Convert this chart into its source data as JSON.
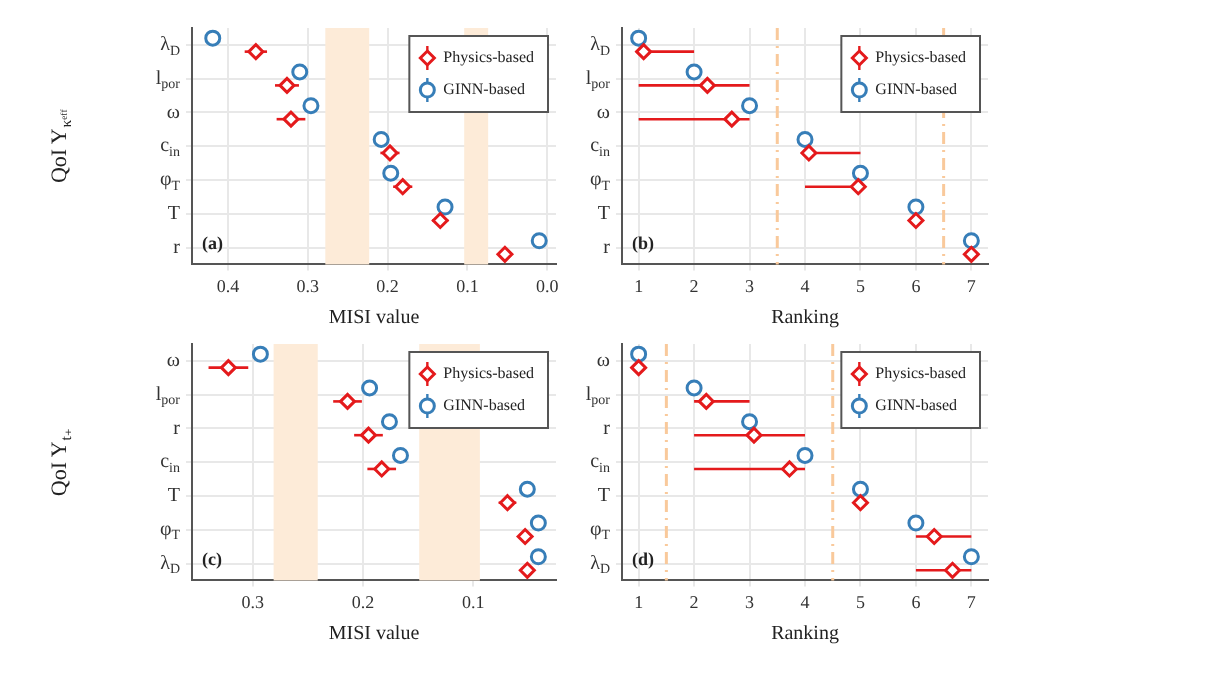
{
  "chart_data": [
    {
      "type": "scatter",
      "orientation": "horizontal",
      "ylabel": "QoI Y$_{κᵉᶠᶠ}$",
      "xlabel": "MISI value",
      "categories": [
        "λ$_{D}$",
        "l$_{por}$",
        "ω",
        "c$_{in}$",
        "φ$_{T}$",
        "T",
        "r"
      ],
      "xlim": [
        0.445,
        -0.011
      ],
      "xticks": [
        0.4,
        0.3,
        0.2,
        0.1,
        {
          "value": 0,
          "label": "0.0"
        }
      ],
      "grid": true,
      "legend": "top right",
      "annotations": [
        "(a)"
      ],
      "bands": [
        {
          "axis": "x",
          "from": 0.278,
          "to": 0.223,
          "color": "#fdebd8"
        },
        {
          "axis": "x",
          "from": 0.104,
          "to": 0.074,
          "color": "#fdebd8"
        }
      ],
      "series": [
        {
          "name": "Physics-based",
          "color": "#e41a1c",
          "marker": "diamond",
          "values": [
            0.365,
            0.326,
            0.321,
            0.197,
            0.181,
            0.134,
            0.053
          ],
          "errors": [
            0.014,
            0.015,
            0.018,
            0.012,
            0.012,
            0.01,
            0.008
          ]
        },
        {
          "name": "GINN-based",
          "color": "#377eb8",
          "marker": "circle",
          "values": [
            0.419,
            0.31,
            0.296,
            0.208,
            0.196,
            0.128,
            0.01
          ]
        }
      ]
    },
    {
      "type": "scatter",
      "orientation": "horizontal",
      "xlabel": "Ranking",
      "categories": [
        "λ$_{D}$",
        "l$_{por}$",
        "ω",
        "c$_{in}$",
        "φ$_{T}$",
        "T",
        "r"
      ],
      "xlim": [
        0.7,
        7.3
      ],
      "xticks": [
        1,
        2,
        3,
        4,
        5,
        6,
        7
      ],
      "grid": true,
      "legend": "top right",
      "annotations": [
        "(b)"
      ],
      "ref_lines": [
        {
          "axis": "x",
          "value": 3.5,
          "color": "#f9c99b",
          "line_style": "dashed"
        },
        {
          "axis": "x",
          "value": 6.5,
          "color": "#f9c99b",
          "line_style": "dashed"
        }
      ],
      "series": [
        {
          "name": "Physics-based",
          "color": "#e41a1c",
          "marker": "diamond",
          "values": [
            1.09,
            2.24,
            2.68,
            4.07,
            4.96,
            6,
            7
          ],
          "errors": [
            [
              1,
              2
            ],
            [
              1,
              3
            ],
            [
              1,
              3
            ],
            [
              4,
              5
            ],
            [
              4,
              5
            ],
            null,
            null
          ]
        },
        {
          "name": "GINN-based",
          "color": "#377eb8",
          "marker": "circle",
          "values": [
            1,
            2,
            3,
            4,
            5,
            6,
            7
          ]
        }
      ]
    },
    {
      "type": "scatter",
      "orientation": "horizontal",
      "ylabel": "QoI Y$_{t₊}$",
      "xlabel": "MISI value",
      "categories": [
        "ω",
        "l$_{por}$",
        "r",
        "c$_{in}$",
        "T",
        "φ$_{T}$",
        "λ$_{D}$"
      ],
      "xlim": [
        0.355,
        0.025
      ],
      "xticks": [
        0.3,
        0.2,
        0.1
      ],
      "grid": true,
      "legend": "top right",
      "annotations": [
        "(c)"
      ],
      "bands": [
        {
          "axis": "x",
          "from": 0.281,
          "to": 0.241,
          "color": "#fdebd8"
        },
        {
          "axis": "x",
          "from": 0.149,
          "to": 0.094,
          "color": "#fdebd8"
        }
      ],
      "series": [
        {
          "name": "Physics-based",
          "color": "#e41a1c",
          "marker": "diamond",
          "values": [
            0.322,
            0.214,
            0.195,
            0.183,
            0.069,
            0.053,
            0.051
          ],
          "errors": [
            0.018,
            0.013,
            0.013,
            0.013,
            0.008,
            0.005,
            0.005
          ]
        },
        {
          "name": "GINN-based",
          "color": "#377eb8",
          "marker": "circle",
          "values": [
            0.293,
            0.194,
            0.176,
            0.166,
            0.051,
            0.041,
            0.041
          ]
        }
      ]
    },
    {
      "type": "scatter",
      "orientation": "horizontal",
      "xlabel": "Ranking",
      "categories": [
        "ω",
        "l$_{por}$",
        "r",
        "c$_{in}$",
        "T",
        "φ$_{T}$",
        "λ$_{D}$"
      ],
      "xlim": [
        0.7,
        7.3
      ],
      "xticks": [
        1,
        2,
        3,
        4,
        5,
        6,
        7
      ],
      "grid": true,
      "legend": "top right",
      "annotations": [
        "(d)"
      ],
      "ref_lines": [
        {
          "axis": "x",
          "value": 1.5,
          "color": "#f9c99b",
          "line_style": "dashed"
        },
        {
          "axis": "x",
          "value": 4.5,
          "color": "#f9c99b",
          "line_style": "dashed"
        }
      ],
      "series": [
        {
          "name": "Physics-based",
          "color": "#e41a1c",
          "marker": "diamond",
          "values": [
            1,
            2.22,
            3.08,
            3.72,
            5,
            6.33,
            6.66
          ],
          "errors": [
            null,
            [
              2,
              3
            ],
            [
              2,
              4
            ],
            [
              2,
              4
            ],
            null,
            [
              6,
              7
            ],
            [
              6,
              7
            ]
          ]
        },
        {
          "name": "GINN-based",
          "color": "#377eb8",
          "marker": "circle",
          "values": [
            1,
            2,
            3,
            4,
            5,
            6,
            7
          ]
        }
      ]
    }
  ]
}
